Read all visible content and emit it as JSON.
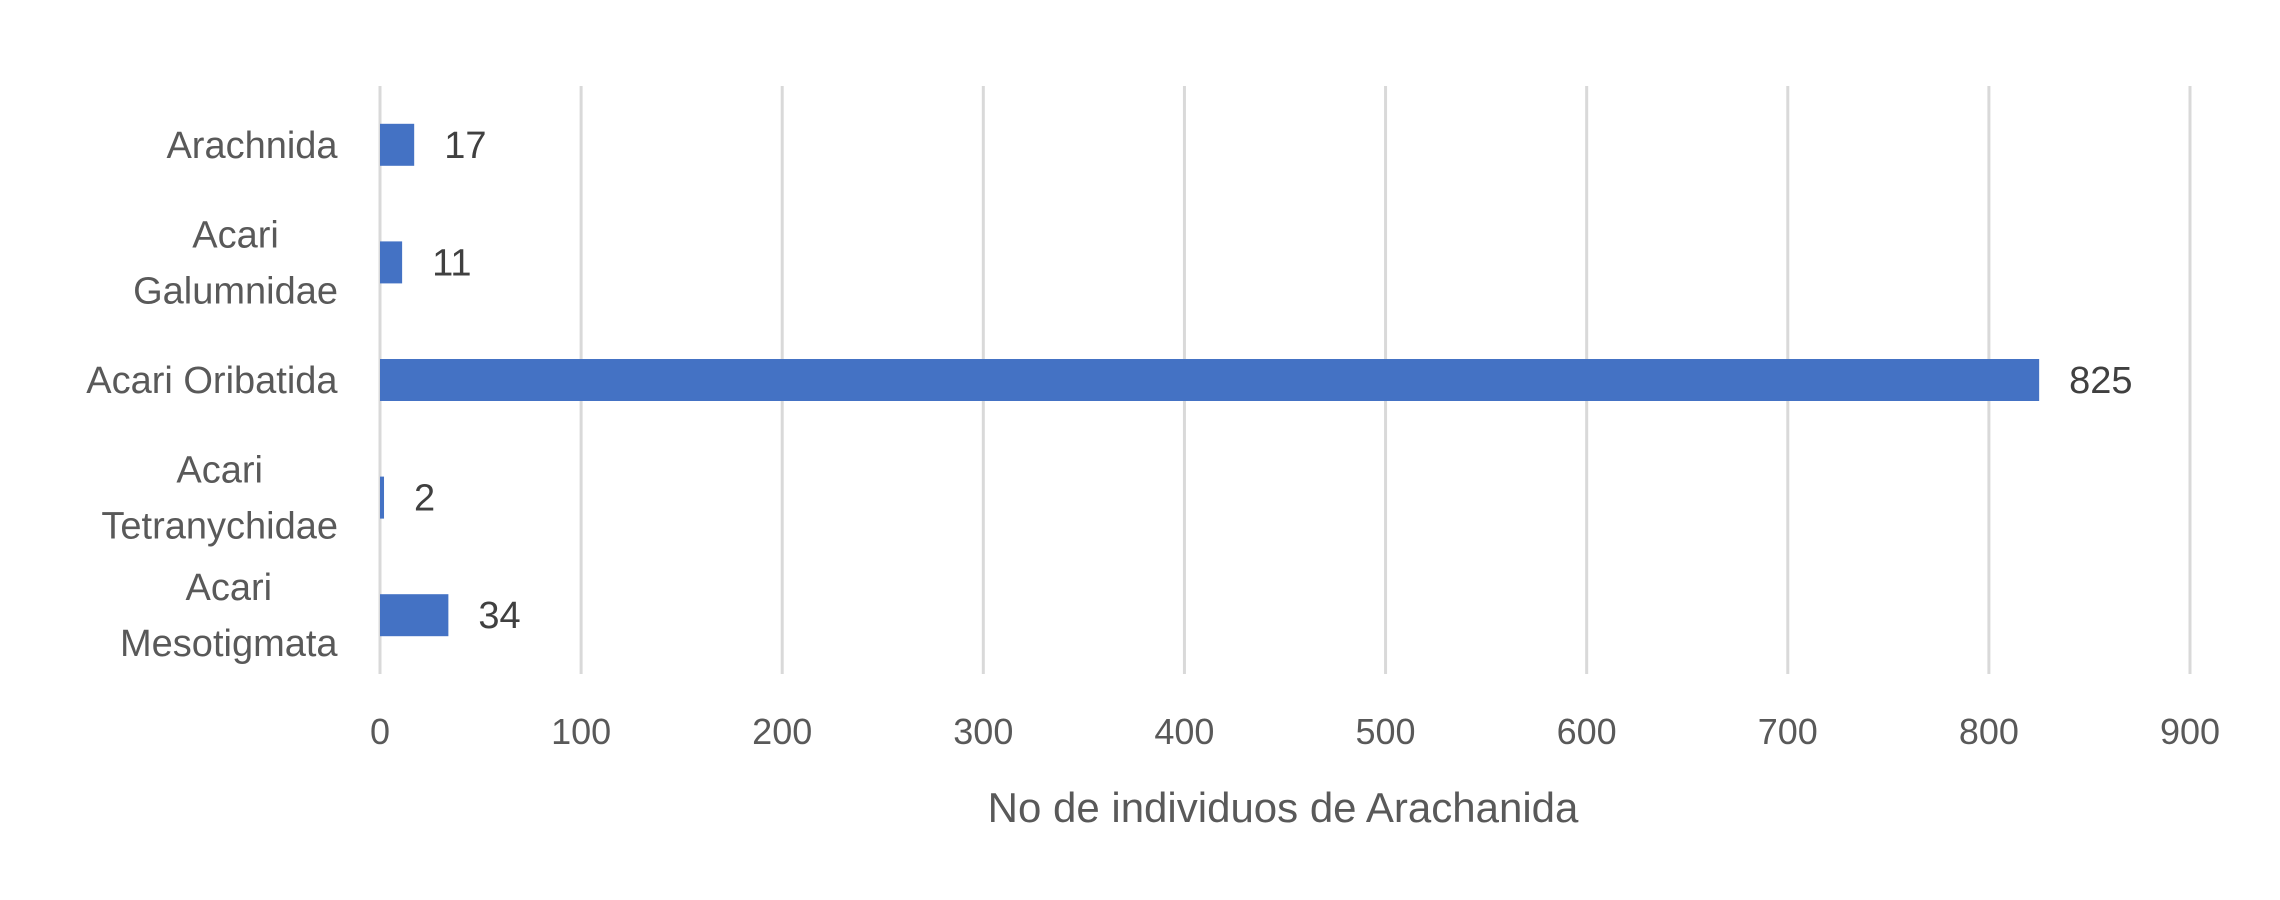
{
  "chart_data": {
    "type": "bar",
    "orientation": "horizontal",
    "categories": [
      [
        "Arachnida"
      ],
      [
        "Acari",
        "Galumnidae"
      ],
      [
        "Acari Oribatida"
      ],
      [
        "Acari",
        "Tetranychidae"
      ],
      [
        "Acari",
        "Mesotigmata"
      ]
    ],
    "values": [
      17,
      11,
      825,
      2,
      34
    ],
    "xlabel": "No de individuos de Arachanida",
    "xlim": [
      0,
      900
    ],
    "xticks": [
      0,
      100,
      200,
      300,
      400,
      500,
      600,
      700,
      800,
      900
    ],
    "grid": "vertical",
    "legend": "none",
    "bar_color": "#4472c4",
    "data_labels": true
  }
}
